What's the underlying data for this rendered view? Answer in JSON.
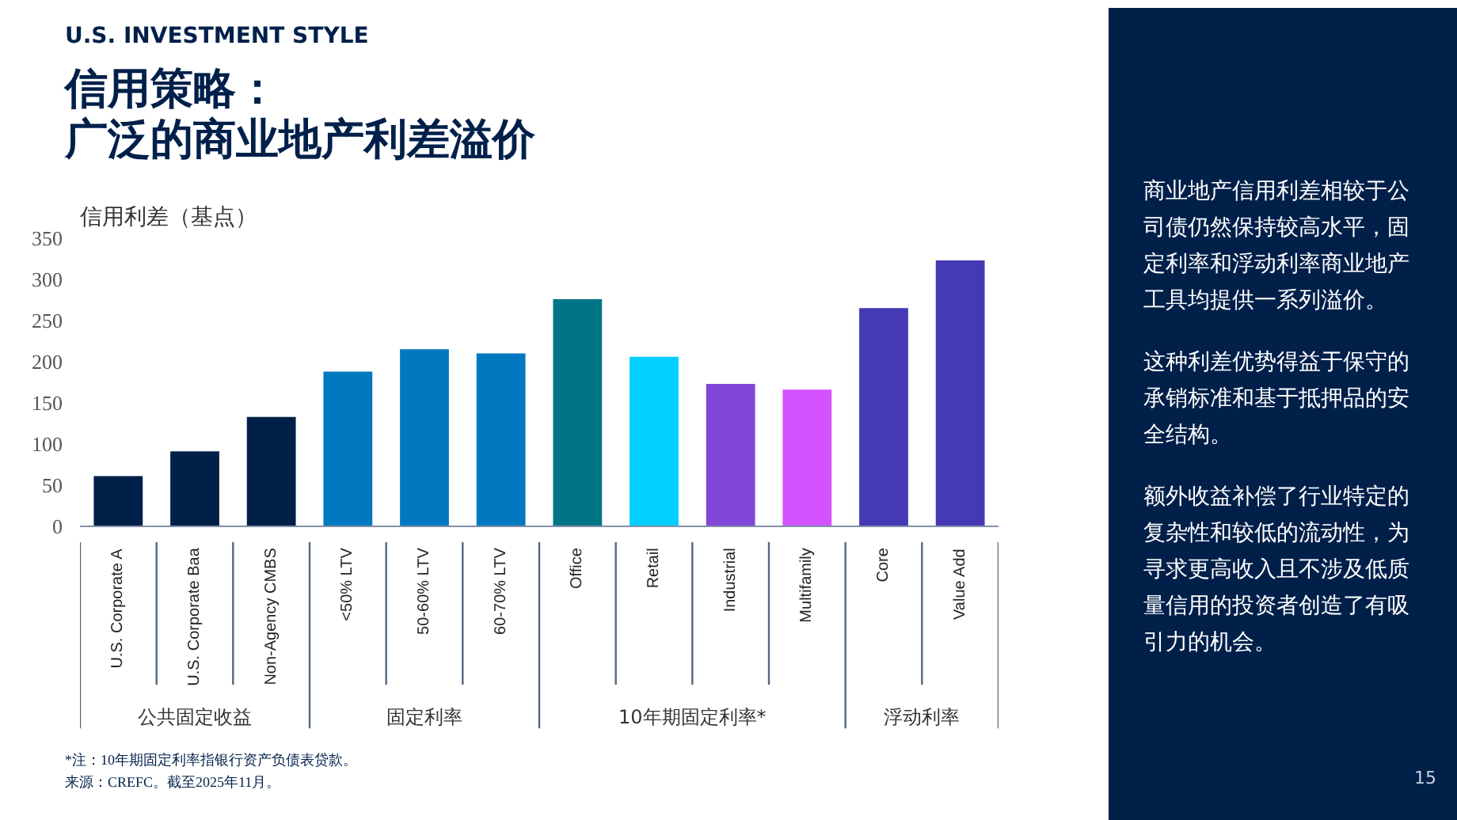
{
  "chart_data": {
    "type": "bar",
    "subtitle": "U.S. INVESTMENT STYLE",
    "title": "信用策略：广泛的商业地产利差溢价",
    "ylabel": "信用利差（基点）",
    "categories": [
      "U.S. Corporate A",
      "U.S. Corporate Baa",
      "Non-Agency CMBS",
      "<50% LTV",
      "50-60% LTV",
      "60-70% LTV",
      "Office",
      "Retail",
      "Industrial",
      "Multifamily",
      "Core",
      "Value Add"
    ],
    "values": [
      62,
      92,
      134,
      189,
      216,
      211,
      277,
      207,
      174,
      167,
      266,
      324
    ],
    "colors": [
      "#00204a",
      "#00204a",
      "#00204a",
      "#0079c1",
      "#0079c1",
      "#0079c1",
      "#007585",
      "#00cfff",
      "#8246d8",
      "#d452ff",
      "#453ab3",
      "#453ab3"
    ],
    "ylim": [
      0,
      350
    ],
    "yticks": [
      0,
      50,
      100,
      150,
      200,
      250,
      300,
      350
    ],
    "annotations": [
      "公共固定收益",
      "固定利率",
      "10年期固定利率*",
      "浮动利率",
      "*注：10年期固定利率指银行资产负债表贷款。",
      "来源：CREFC。截至2025年11月。",
      "商业地产信用利差相较于公司债仍然保持较高水平，固定利率和浮动利率商业地产工具均提供一系列溢价。",
      "这种利差优势得益于保守的承销标准和基于抵押品的安全结构。",
      "额外收益补偿了行业特定的复杂性和较低的流动性，为寻求更高收入且不涉及低质量信用的投资者创造了有吸引力的机会。",
      "15"
    ]
  }
}
